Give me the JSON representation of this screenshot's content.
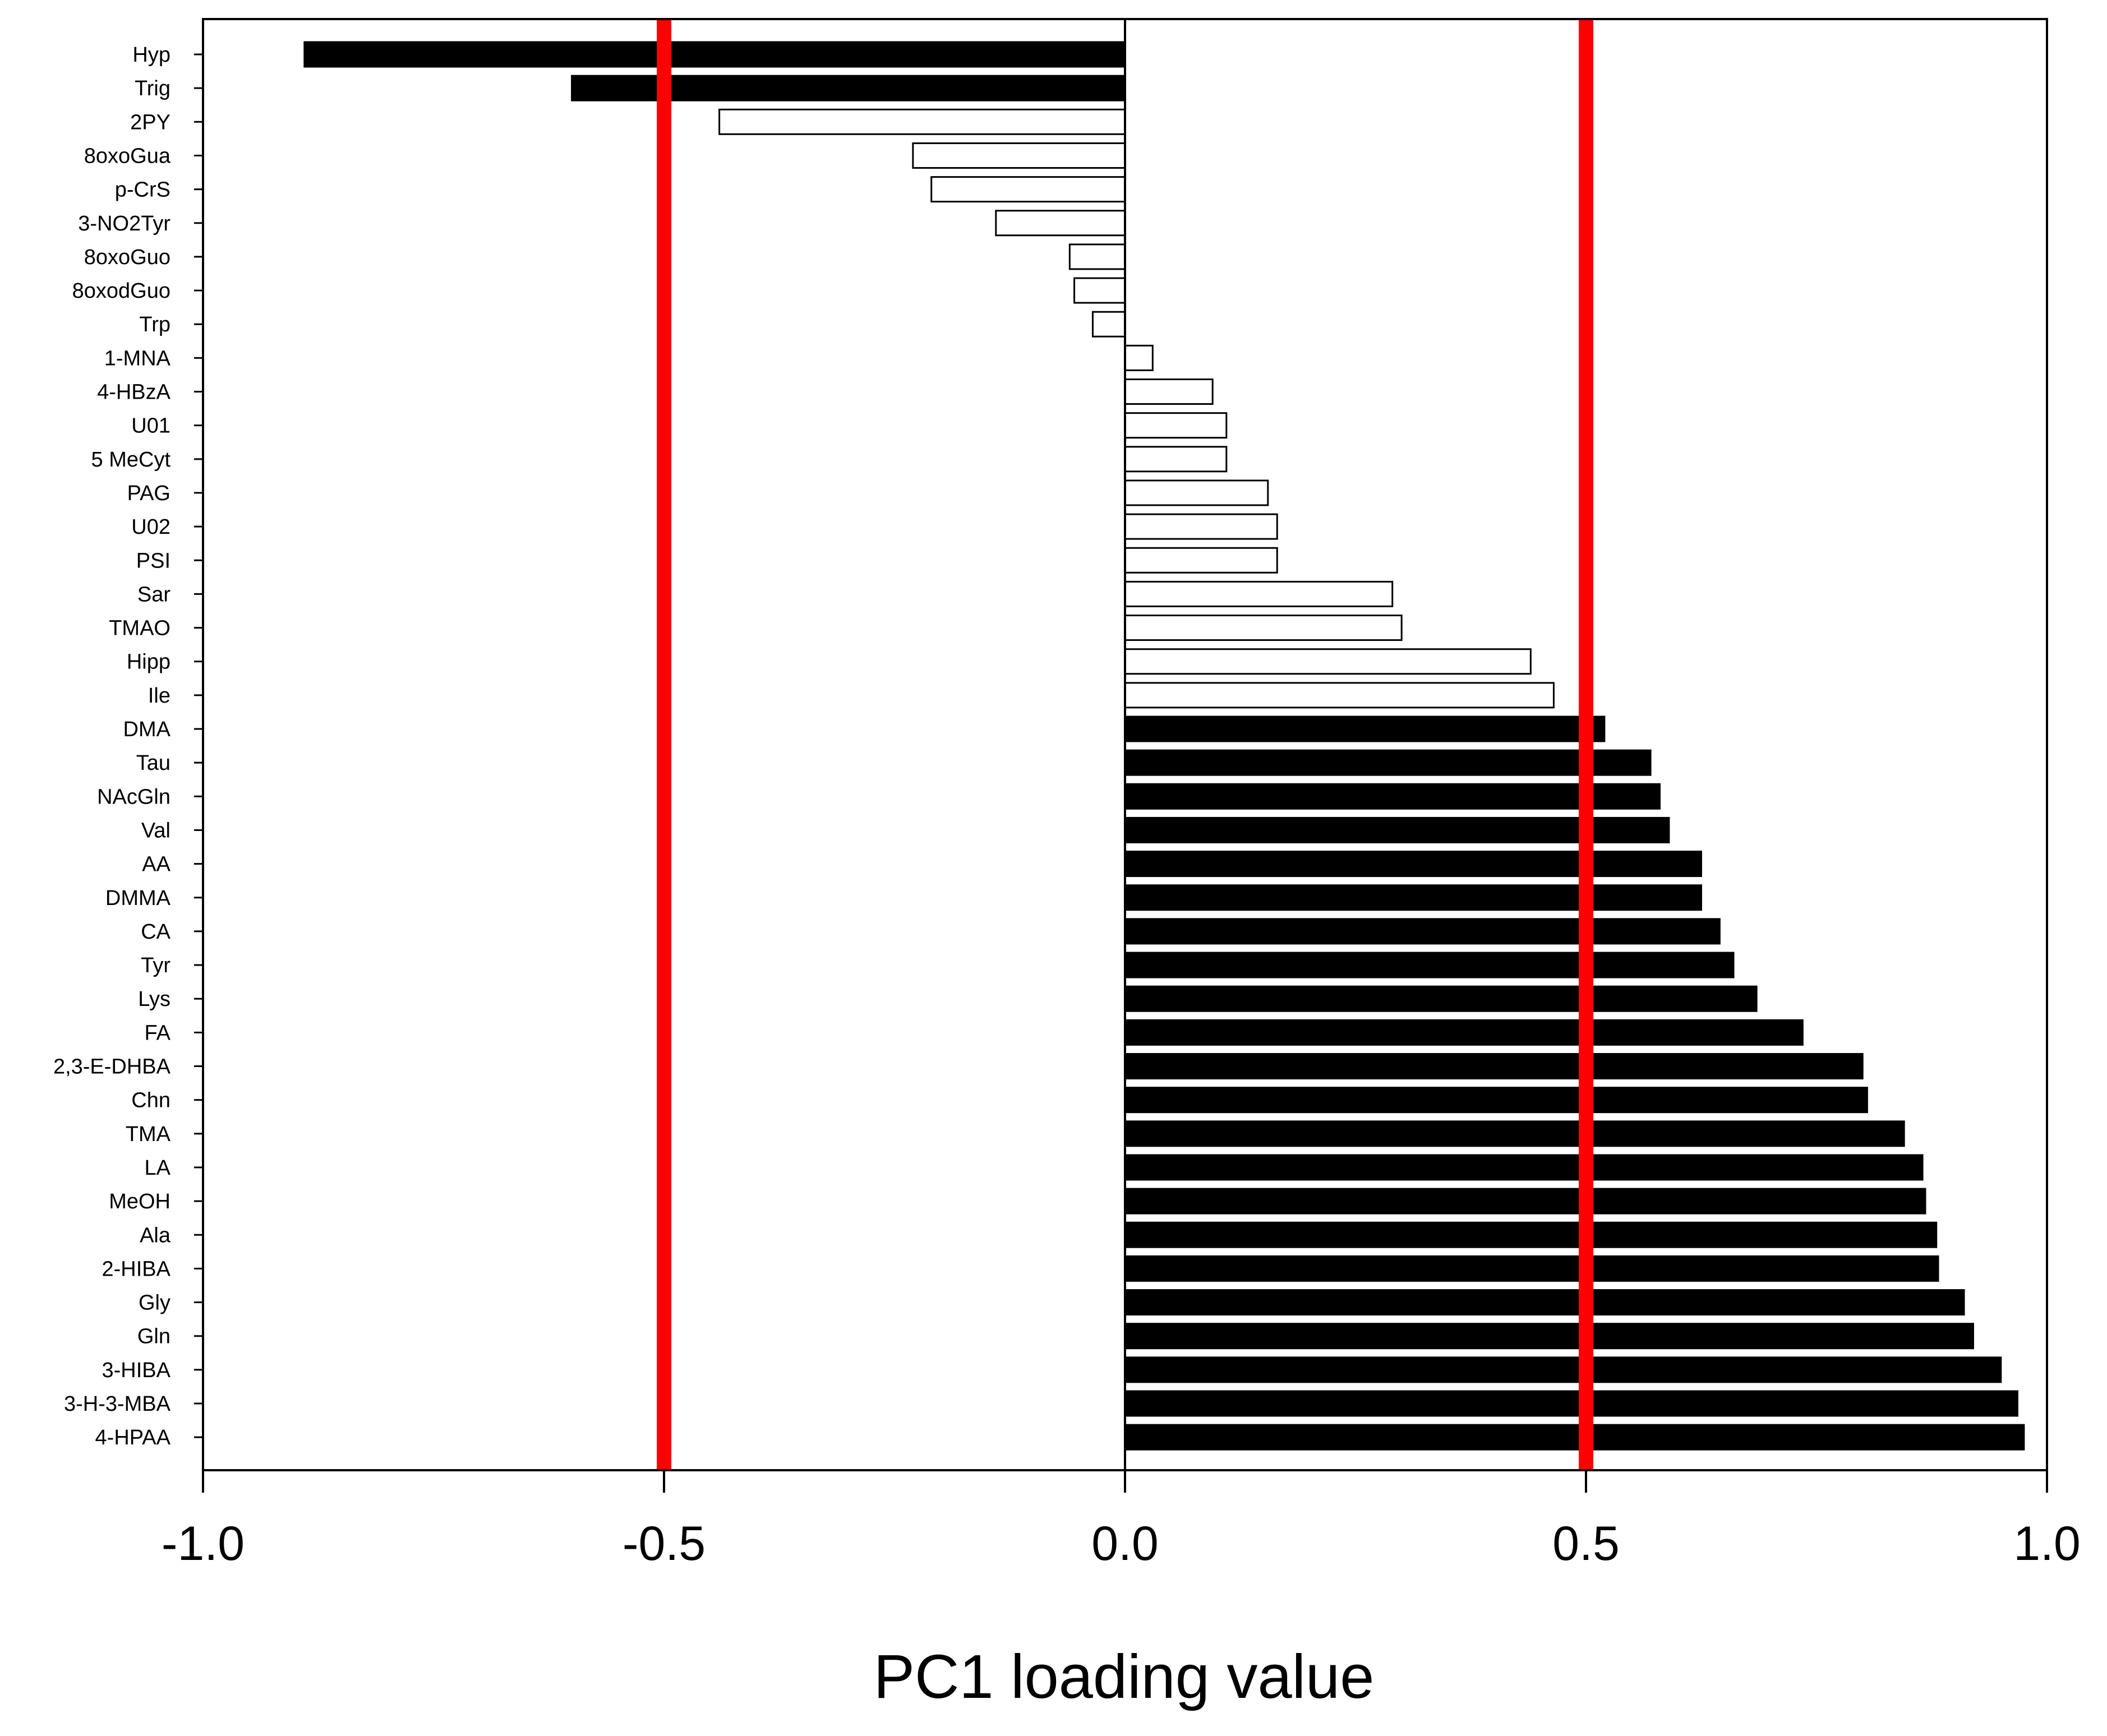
{
  "chart_data": {
    "type": "bar",
    "orientation": "horizontal",
    "title": "",
    "xlabel": "PC1 loading value",
    "ylabel": "",
    "xlim": [
      -1.0,
      1.0
    ],
    "x_ticks": [
      -1.0,
      -0.5,
      0.0,
      0.5,
      1.0
    ],
    "x_tick_labels": [
      "-1.0",
      "-0.5",
      "0.0",
      "0.5",
      "1.0"
    ],
    "grid": false,
    "legend": "none",
    "threshold_lines": [
      {
        "value": -0.5,
        "color": "#ff0000"
      },
      {
        "value": 0.5,
        "color": "#ff0000"
      }
    ],
    "colors": {
      "significant": "#000000",
      "not_significant": "#ffffff",
      "bar_edge": "#000000",
      "threshold": "#ff0000"
    },
    "categories": [
      "Hyp",
      "Trig",
      "2PY",
      "8oxoGua",
      "p-CrS",
      "3-NO2Tyr",
      "8oxoGuo",
      "8oxodGuo",
      "Trp",
      "1-MNA",
      "4-HBzA",
      "U01",
      "5 MeCyt",
      "PAG",
      "U02",
      "PSI",
      "Sar",
      "TMAO",
      "Hipp",
      "Ile",
      "DMA",
      "Tau",
      "NAcGln",
      "Val",
      "AA",
      "DMMA",
      "CA",
      "Tyr",
      "Lys",
      "FA",
      "2,3-E-DHBA",
      "Chn",
      "TMA",
      "LA",
      "MeOH",
      "Ala",
      "2-HIBA",
      "Gly",
      "Gln",
      "3-HIBA",
      "3-H-3-MBA",
      "4-HPAA"
    ],
    "values": [
      -0.89,
      -0.6,
      -0.44,
      -0.23,
      -0.21,
      -0.14,
      -0.06,
      -0.055,
      -0.035,
      0.03,
      0.095,
      0.11,
      0.11,
      0.155,
      0.165,
      0.165,
      0.29,
      0.3,
      0.44,
      0.465,
      0.52,
      0.57,
      0.58,
      0.59,
      0.625,
      0.625,
      0.645,
      0.66,
      0.685,
      0.735,
      0.8,
      0.805,
      0.845,
      0.865,
      0.868,
      0.88,
      0.882,
      0.91,
      0.92,
      0.95,
      0.968,
      0.975
    ],
    "significant": [
      true,
      true,
      false,
      false,
      false,
      false,
      false,
      false,
      false,
      false,
      false,
      false,
      false,
      false,
      false,
      false,
      false,
      false,
      false,
      false,
      true,
      true,
      true,
      true,
      true,
      true,
      true,
      true,
      true,
      true,
      true,
      true,
      true,
      true,
      true,
      true,
      true,
      true,
      true,
      true,
      true,
      true
    ]
  }
}
